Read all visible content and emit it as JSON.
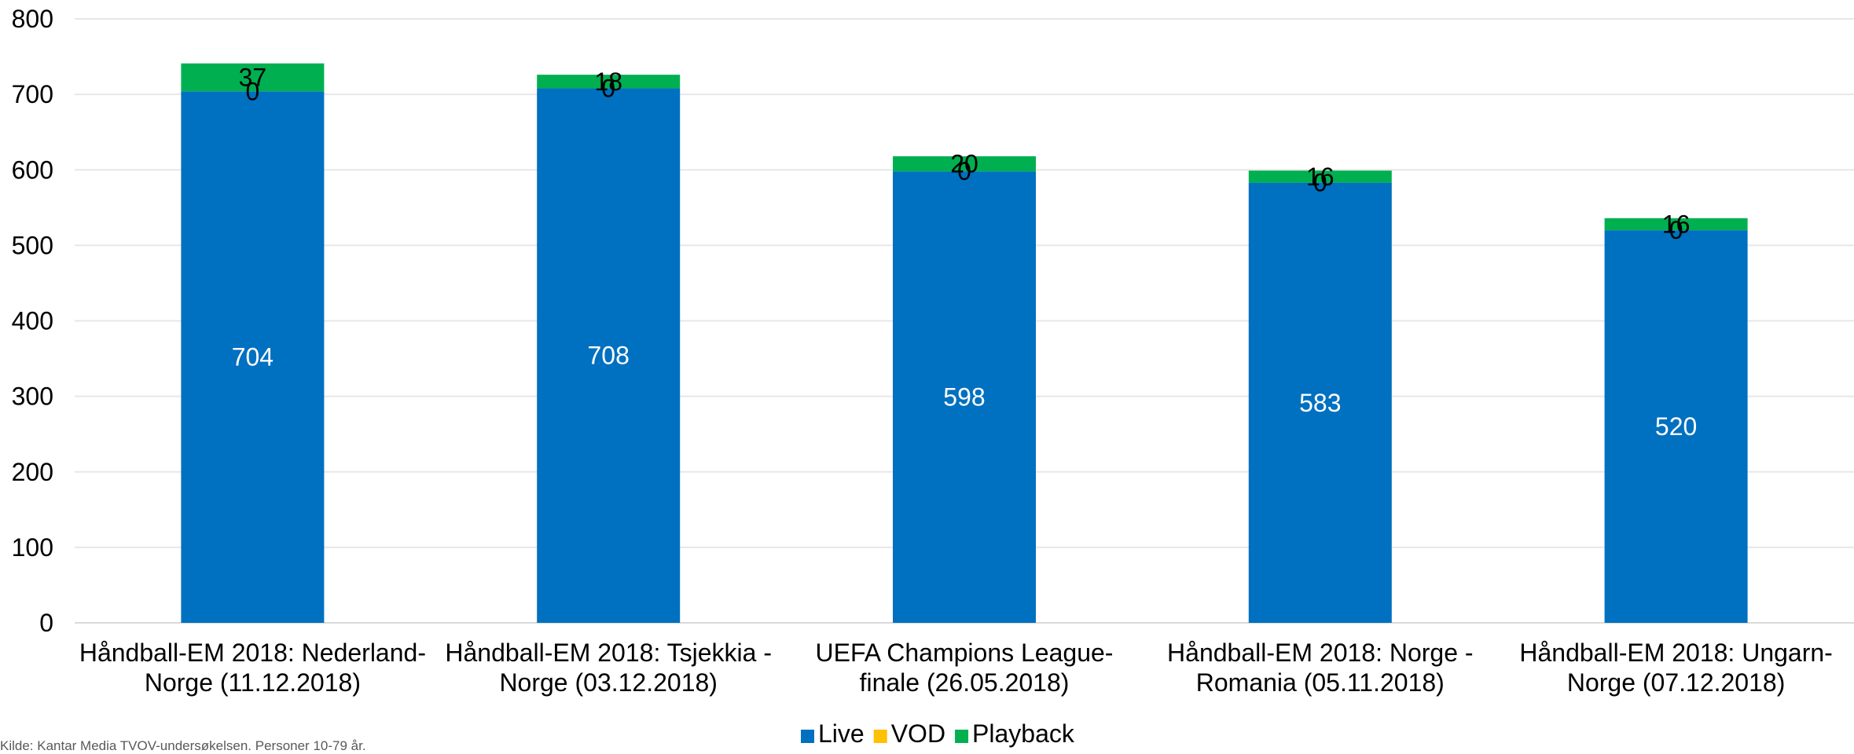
{
  "chart_data": {
    "type": "bar",
    "stacked": true,
    "categories": [
      [
        "Håndball-EM 2018: Nederland-",
        "Norge (11.12.2018)"
      ],
      [
        "Håndball-EM 2018: Tsjekkia -",
        "Norge (03.12.2018)"
      ],
      [
        "UEFA Champions League-",
        "finale (26.05.2018)"
      ],
      [
        "Håndball-EM 2018: Norge -",
        "Romania (05.11.2018)"
      ],
      [
        "Håndball-EM 2018: Ungarn-",
        "Norge (07.12.2018)"
      ]
    ],
    "series": [
      {
        "name": "Live",
        "color": "#0070C0",
        "values": [
          704,
          708,
          598,
          583,
          520
        ],
        "label_color": "#ffffff"
      },
      {
        "name": "VOD",
        "color": "#FFC000",
        "values": [
          0,
          0,
          0,
          0,
          0
        ],
        "label_color": "#000000"
      },
      {
        "name": "Playback",
        "color": "#00B050",
        "values": [
          37,
          18,
          20,
          16,
          16
        ],
        "label_color": "#000000"
      }
    ],
    "ylim": [
      0,
      800
    ],
    "yticks": [
      0,
      100,
      200,
      300,
      400,
      500,
      600,
      700,
      800
    ],
    "grid": true,
    "legend": "bottom-center"
  },
  "source_text": "Kilde: Kantar Media TVOV-undersøkelsen. Personer 10-79 år."
}
